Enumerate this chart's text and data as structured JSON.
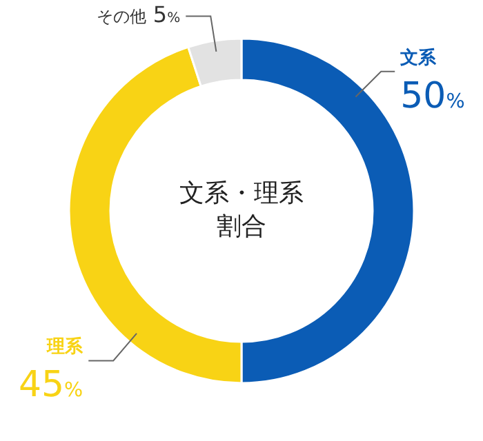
{
  "chart_data": {
    "type": "donut",
    "title": "文系・理系割合",
    "categories": [
      "文系",
      "理系",
      "その他"
    ],
    "values": [
      50,
      45,
      5
    ],
    "colors": [
      "#0b5cb5",
      "#f8d315",
      "#e2e2e2"
    ],
    "value_labels": [
      "50%",
      "45%",
      "5%"
    ]
  }
}
